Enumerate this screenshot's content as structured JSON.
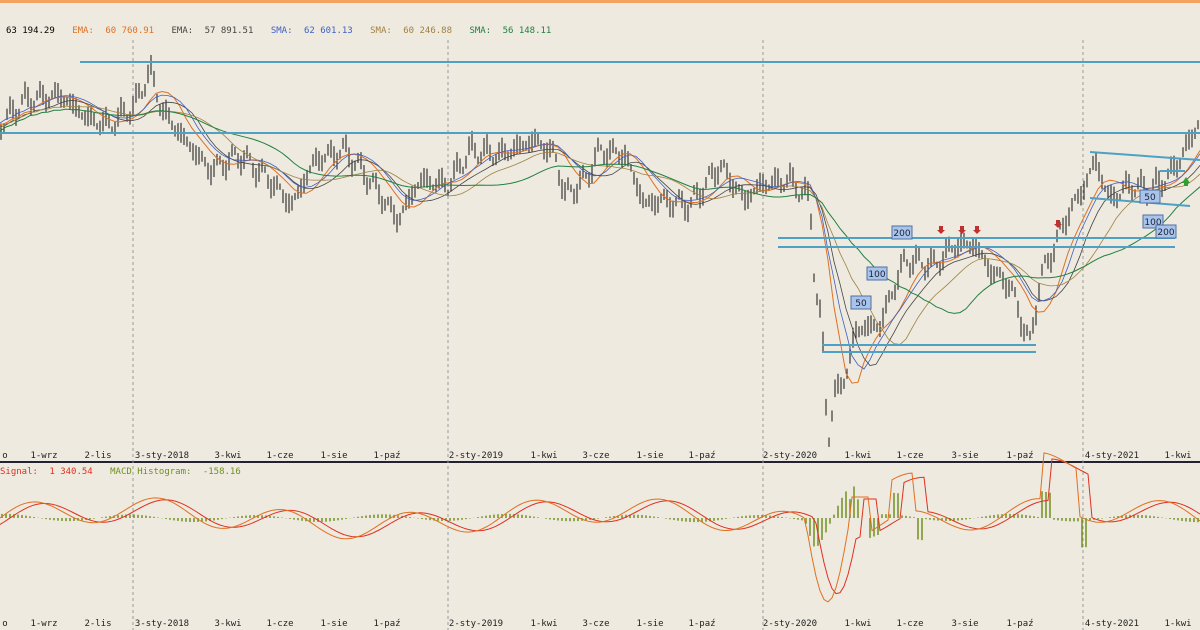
{
  "chart_data": [
    {
      "type": "candlestick",
      "title": "",
      "legend_text": "63 194.29 EMA: 60 760.91 EMA: 57 891.51 SMA: 62 601.13 SMA: 60 246.88 SMA: 56 148.11",
      "legend": [
        {
          "label": "",
          "value": "63 194.29",
          "color": "#000000"
        },
        {
          "label": "EMA:",
          "value": "60 760.91",
          "color": "#e07020"
        },
        {
          "label": "EMA:",
          "value": "57 891.51",
          "color": "#444444"
        },
        {
          "label": "SMA:",
          "value": "62 601.13",
          "color": "#4060c0"
        },
        {
          "label": "SMA:",
          "value": "60 246.88",
          "color": "#a08040"
        },
        {
          "label": "SMA:",
          "value": "56 148.11",
          "color": "#208040"
        }
      ],
      "x_ticks": [
        "o",
        "1-wrz",
        "2-lis",
        "3-sty-2018",
        "3-kwi",
        "1-cze",
        "1-sie",
        "1-paź",
        "2-sty-2019",
        "1-kwi",
        "3-cze",
        "1-sie",
        "1-paź",
        "2-sty-2020",
        "1-kwi",
        "1-cze",
        "3-sie",
        "1-paź",
        "4-sty-2021",
        "1-kwi"
      ],
      "horizontal_levels": [
        {
          "id": "top",
          "level": 1.0
        },
        {
          "id": "resistance",
          "level": 0.82
        },
        {
          "id": "mid-upper",
          "level": 0.5
        },
        {
          "id": "mid-lower",
          "level": 0.47
        },
        {
          "id": "support-upper",
          "level": 0.215
        },
        {
          "id": "support-lower",
          "level": 0.2
        }
      ],
      "ma_badges": [
        "200",
        "100",
        "50",
        "50",
        "100",
        "200"
      ],
      "grid": false
    },
    {
      "type": "macd",
      "legend": [
        {
          "label": "Signal:",
          "value": "1 340.54",
          "color": "#e03020"
        },
        {
          "label": "MACD Histogram:",
          "value": "-158.16",
          "color": "#709020"
        }
      ],
      "x_ticks": [
        "o",
        "1-wrz",
        "2-lis",
        "3-sty-2018",
        "3-kwi",
        "1-cze",
        "1-sie",
        "1-paź",
        "2-sty-2019",
        "1-kwi",
        "3-cze",
        "1-sie",
        "1-paź",
        "2-sty-2020",
        "1-kwi",
        "1-cze",
        "3-sie",
        "1-paź",
        "4-sty-2021",
        "1-kwi"
      ]
    }
  ]
}
